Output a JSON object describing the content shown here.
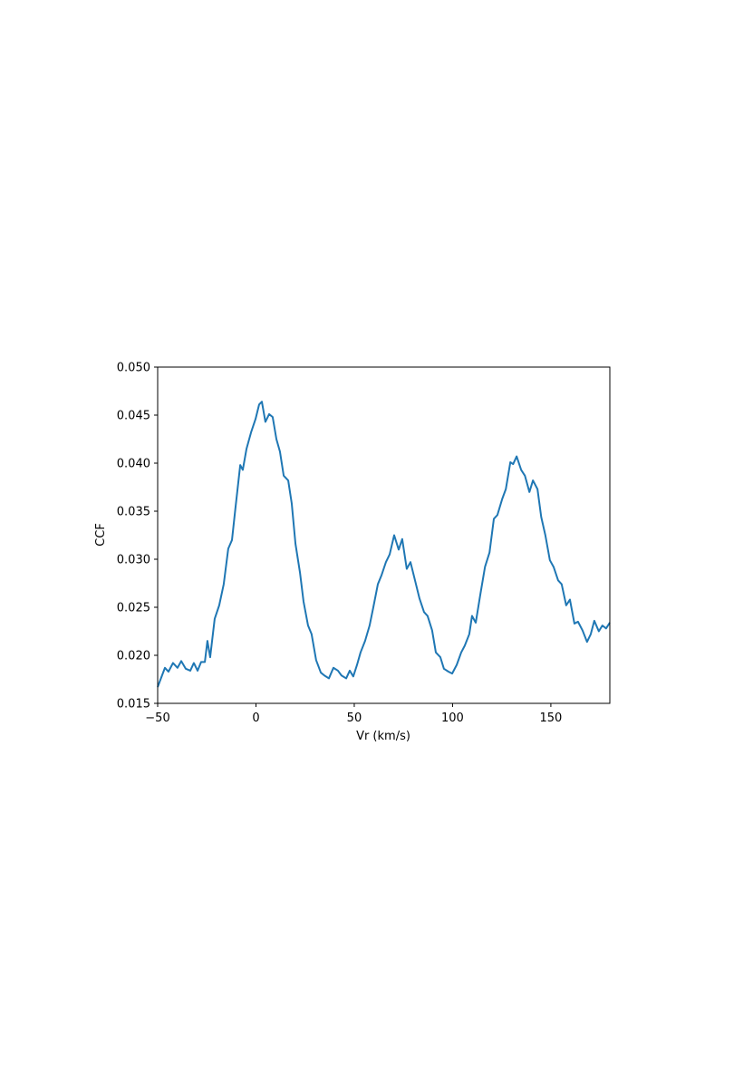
{
  "chart_data": {
    "type": "line",
    "x_label": "Vr (km/s)",
    "y_label": "CCF",
    "xlim": [
      -50,
      180
    ],
    "xticks": [
      {
        "value": -50,
        "label": "−50"
      },
      0,
      50,
      100,
      150
    ],
    "ylim": [
      0.015,
      0.05
    ],
    "yticks": [
      {
        "value": 0.015,
        "label": "0.015"
      },
      {
        "value": 0.02,
        "label": "0.020"
      },
      {
        "value": 0.025,
        "label": "0.025"
      },
      {
        "value": 0.03,
        "label": "0.030"
      },
      {
        "value": 0.035,
        "label": "0.035"
      },
      {
        "value": 0.04,
        "label": "0.040"
      },
      {
        "value": 0.045,
        "label": "0.045"
      },
      {
        "value": 0.05,
        "label": "0.050"
      }
    ],
    "grid": false,
    "color": "#1f77b4",
    "x": [
      -50,
      -46.3,
      -44.5,
      -42.2,
      -39.9,
      -38,
      -35.7,
      -33.4,
      -31.6,
      -29.7,
      -27.9,
      -26,
      -24.7,
      -23.3,
      -21,
      -18.7,
      -16.4,
      -14.1,
      -12.2,
      -10.4,
      -8,
      -6.7,
      -4.8,
      -2.5,
      -0.2,
      1.6,
      3,
      4.8,
      6.7,
      8.5,
      10.4,
      12.2,
      14.1,
      16.4,
      18.2,
      20.1,
      22.4,
      24.2,
      26.5,
      28.3,
      30.6,
      33,
      34.8,
      37.1,
      39.4,
      41.7,
      43.5,
      45.9,
      47.7,
      49.5,
      51.4,
      53.2,
      55.5,
      57.8,
      59.7,
      62,
      63.8,
      66.1,
      68,
      70.3,
      72.6,
      74.4,
      76.7,
      78.6,
      80.9,
      83.2,
      85.5,
      87.3,
      89.6,
      91.5,
      93.8,
      95.6,
      97.9,
      99.8,
      102.1,
      104.4,
      106.2,
      108.5,
      109.9,
      111.8,
      114.1,
      116.5,
      118.8,
      121,
      122.8,
      125.3,
      127.1,
      129.4,
      130.8,
      132.6,
      134.9,
      136.8,
      139.1,
      140.9,
      143.2,
      145.1,
      147.2,
      149.5,
      151.4,
      153.7,
      155.5,
      157.8,
      159.7,
      162,
      163.8,
      166.1,
      168.4,
      170.3,
      172.1,
      174.4,
      176.2,
      178.1,
      180
    ],
    "values": [
      0.0167,
      0.0187,
      0.0183,
      0.0192,
      0.0187,
      0.0194,
      0.0186,
      0.0184,
      0.0192,
      0.0184,
      0.0193,
      0.0193,
      0.0215,
      0.0198,
      0.0238,
      0.0252,
      0.0274,
      0.0311,
      0.032,
      0.0354,
      0.0398,
      0.0393,
      0.0415,
      0.0432,
      0.0446,
      0.0461,
      0.0464,
      0.0443,
      0.0451,
      0.0448,
      0.0425,
      0.0412,
      0.0387,
      0.0382,
      0.0358,
      0.0316,
      0.0286,
      0.0256,
      0.0231,
      0.0222,
      0.0195,
      0.0182,
      0.0179,
      0.0176,
      0.0187,
      0.0184,
      0.0179,
      0.0176,
      0.0184,
      0.0178,
      0.019,
      0.0203,
      0.0215,
      0.0231,
      0.025,
      0.0274,
      0.0283,
      0.0297,
      0.0305,
      0.0325,
      0.031,
      0.0321,
      0.029,
      0.0297,
      0.0278,
      0.0259,
      0.0245,
      0.0241,
      0.0226,
      0.0203,
      0.0198,
      0.0186,
      0.0183,
      0.0181,
      0.019,
      0.0203,
      0.021,
      0.0222,
      0.0241,
      0.0234,
      0.0263,
      0.0292,
      0.0307,
      0.0342,
      0.0346,
      0.0363,
      0.0373,
      0.0401,
      0.0399,
      0.0407,
      0.0393,
      0.0387,
      0.037,
      0.0382,
      0.0373,
      0.0344,
      0.0325,
      0.0299,
      0.0292,
      0.0278,
      0.0274,
      0.0252,
      0.0258,
      0.0233,
      0.0235,
      0.0226,
      0.0214,
      0.0222,
      0.0236,
      0.0225,
      0.0231,
      0.0228,
      0.0234
    ]
  }
}
